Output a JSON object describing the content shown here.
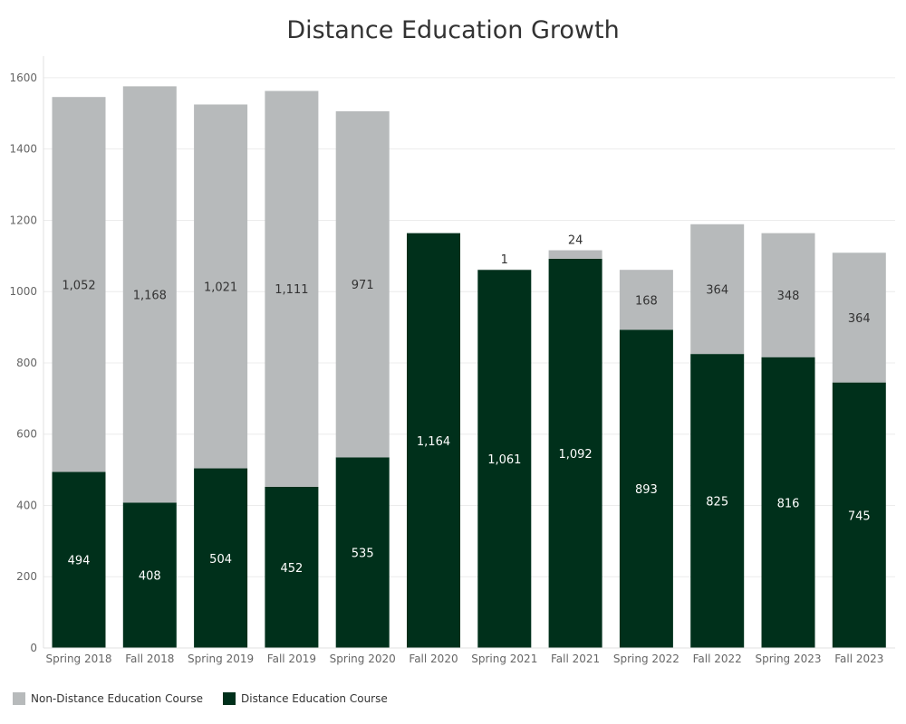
{
  "colors": {
    "non_distance": "#b7babb",
    "distance": "#00301b",
    "grid": "#ececec",
    "axis_text": "#666666",
    "label_dark": "#333333",
    "label_light": "#ffffff"
  },
  "chart_data": {
    "type": "bar",
    "stacked": true,
    "title": "Distance Education Growth",
    "xlabel": "",
    "ylabel": "",
    "ylim": [
      0,
      1650
    ],
    "yticks": [
      0,
      200,
      400,
      600,
      800,
      1000,
      1200,
      1400,
      1600
    ],
    "grid": true,
    "legend_position": "bottom-left",
    "categories": [
      "Spring 2018",
      "Fall 2018",
      "Spring 2019",
      "Fall 2019",
      "Spring 2020",
      "Fall 2020",
      "Spring 2021",
      "Fall 2021",
      "Spring 2022",
      "Fall 2022",
      "Spring 2023",
      "Fall 2023"
    ],
    "series": [
      {
        "name": "Distance Education Course",
        "values": [
          494,
          408,
          504,
          452,
          535,
          1164,
          1061,
          1092,
          893,
          825,
          816,
          745
        ],
        "labels": [
          "494",
          "408",
          "504",
          "452",
          "535",
          "1,164",
          "1,061",
          "1,092",
          "893",
          "825",
          "816",
          "745"
        ]
      },
      {
        "name": "Non-Distance Education Course",
        "values": [
          1052,
          1168,
          1021,
          1111,
          971,
          0,
          1,
          24,
          168,
          364,
          348,
          364
        ],
        "labels": [
          "1,052",
          "1,168",
          "1,021",
          "1,111",
          "971",
          "",
          "1",
          "24",
          "168",
          "364",
          "348",
          "364"
        ]
      }
    ],
    "legend": [
      "Non-Distance Education Course",
      "Distance Education Course"
    ]
  }
}
